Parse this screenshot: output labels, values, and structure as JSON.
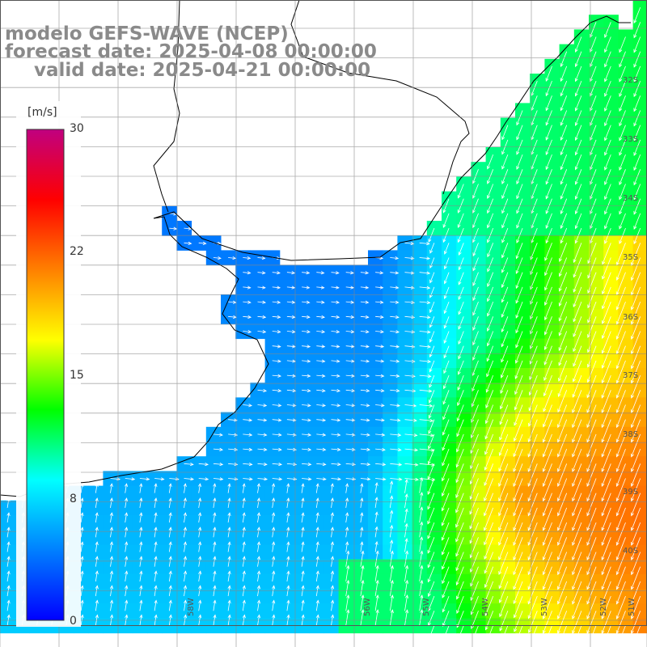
{
  "title": {
    "line1": "modelo GEFS-WAVE (NCEP)",
    "line2": "forecast date: 2025-04-08 00:00:00",
    "line3": "valid date: 2025-04-21 00:00:00"
  },
  "colorbar": {
    "unit": "[m/s]",
    "ticks": [
      "30",
      "22",
      "15",
      "8",
      "0"
    ],
    "tick_values": [
      30,
      22,
      15,
      8,
      0
    ],
    "range": [
      0,
      30
    ],
    "colors": [
      "#0000ff",
      "#0080ff",
      "#00ffff",
      "#00ff00",
      "#ffff00",
      "#ff8000",
      "#ff0000",
      "#c00080"
    ]
  },
  "map": {
    "variable": "wind speed and direction",
    "lat_labels": [
      "32S",
      "33S",
      "34S",
      "35S",
      "36S",
      "37S",
      "38S",
      "39S",
      "40S"
    ],
    "lon_labels": [
      "58W",
      "56W",
      "55W",
      "54W",
      "53W",
      "52W",
      "51W"
    ],
    "land_color": "#ffffff",
    "coast_color": "#000000",
    "grid_color": "#888888",
    "arrow_color": "#ffffff"
  }
}
